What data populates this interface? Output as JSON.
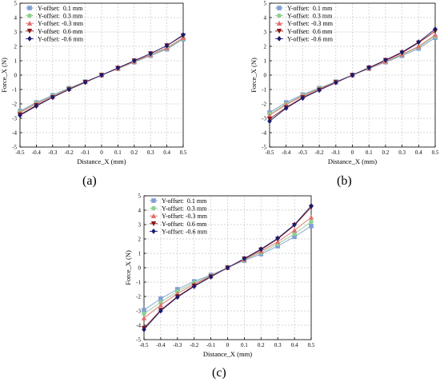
{
  "chart_data": [
    {
      "type": "line",
      "panel_label": "(a)",
      "xlabel": "Distance_X (mm)",
      "ylabel": "Force_X (N)",
      "xlim": [
        -0.5,
        0.5
      ],
      "ylim": [
        -5,
        5
      ],
      "xticks": [
        -0.5,
        -0.4,
        -0.3,
        -0.2,
        -0.1,
        0,
        0.1,
        0.2,
        0.3,
        0.4,
        0.5
      ],
      "yticks": [
        -5,
        -4,
        -3,
        -2,
        -1,
        0,
        1,
        2,
        3,
        4,
        5
      ],
      "grid": true,
      "legend_position": "top-left",
      "x": [
        -0.5,
        -0.4,
        -0.3,
        -0.2,
        -0.1,
        0,
        0.1,
        0.2,
        0.3,
        0.4,
        0.5
      ],
      "series": [
        {
          "name": "Y-offset:  0.1 mm",
          "color": "#7f9fd4",
          "marker": "square",
          "values": [
            -2.5,
            -1.9,
            -1.4,
            -0.9,
            -0.45,
            0,
            0.45,
            0.9,
            1.35,
            1.8,
            2.5
          ]
        },
        {
          "name": "Y-offset:  0.3 mm",
          "color": "#8fd08f",
          "marker": "circle",
          "values": [
            -2.55,
            -1.95,
            -1.45,
            -0.92,
            -0.46,
            0,
            0.46,
            0.92,
            1.38,
            1.85,
            2.55
          ]
        },
        {
          "name": "Y-offset: -0.3 mm",
          "color": "#e07070",
          "marker": "triangle-up",
          "values": [
            -2.6,
            -2.0,
            -1.5,
            -0.95,
            -0.47,
            0,
            0.47,
            0.95,
            1.42,
            1.9,
            2.6
          ]
        },
        {
          "name": "Y-offset:  0.6 mm",
          "color": "#8b1a1a",
          "marker": "triangle-down",
          "values": [
            -2.75,
            -2.1,
            -1.55,
            -1.0,
            -0.49,
            0,
            0.49,
            1.0,
            1.5,
            2.05,
            2.75
          ]
        },
        {
          "name": "Y-offset: -0.6 mm",
          "color": "#1a1a6e",
          "marker": "diamond",
          "values": [
            -2.8,
            -2.15,
            -1.55,
            -1.0,
            -0.5,
            0,
            0.5,
            1.0,
            1.5,
            2.05,
            2.8
          ]
        }
      ]
    },
    {
      "type": "line",
      "panel_label": "(b)",
      "xlabel": "Distance_X (mm)",
      "ylabel": "Force_X (N)",
      "xlim": [
        -0.5,
        0.5
      ],
      "ylim": [
        -5,
        5
      ],
      "xticks": [
        -0.5,
        -0.4,
        -0.3,
        -0.2,
        -0.1,
        0,
        0.1,
        0.2,
        0.3,
        0.4,
        0.5
      ],
      "yticks": [
        -5,
        -4,
        -3,
        -2,
        -1,
        0,
        1,
        2,
        3,
        4,
        5
      ],
      "grid": true,
      "legend_position": "top-left",
      "x": [
        -0.5,
        -0.4,
        -0.3,
        -0.2,
        -0.1,
        0,
        0.1,
        0.2,
        0.3,
        0.4,
        0.5
      ],
      "series": [
        {
          "name": "Y-offset:  0.1 mm",
          "color": "#7f9fd4",
          "marker": "square",
          "values": [
            -2.6,
            -1.9,
            -1.35,
            -0.9,
            -0.45,
            0,
            0.45,
            0.9,
            1.35,
            1.85,
            2.6
          ]
        },
        {
          "name": "Y-offset:  0.3 mm",
          "color": "#8fd08f",
          "marker": "circle",
          "values": [
            -2.7,
            -2.0,
            -1.4,
            -0.93,
            -0.47,
            0,
            0.47,
            0.93,
            1.42,
            1.95,
            2.7
          ]
        },
        {
          "name": "Y-offset: -0.3 mm",
          "color": "#e07070",
          "marker": "triangle-up",
          "values": [
            -2.8,
            -2.05,
            -1.45,
            -0.97,
            -0.48,
            0,
            0.48,
            0.97,
            1.45,
            2.0,
            2.8
          ]
        },
        {
          "name": "Y-offset:  0.6 mm",
          "color": "#8b1a1a",
          "marker": "triangle-down",
          "values": [
            -3.05,
            -2.25,
            -1.55,
            -1.03,
            -0.51,
            0,
            0.51,
            1.03,
            1.55,
            2.25,
            3.05
          ]
        },
        {
          "name": "Y-offset: -0.6 mm",
          "color": "#1a1a6e",
          "marker": "diamond",
          "values": [
            -3.2,
            -2.3,
            -1.6,
            -1.05,
            -0.52,
            0,
            0.52,
            1.05,
            1.6,
            2.3,
            3.2
          ]
        }
      ]
    },
    {
      "type": "line",
      "panel_label": "(c)",
      "xlabel": "Distance_X (mm)",
      "ylabel": "Force_X (N)",
      "xlim": [
        -0.5,
        0.5
      ],
      "ylim": [
        -5,
        5
      ],
      "xticks": [
        -0.5,
        -0.4,
        -0.3,
        -0.2,
        -0.1,
        0,
        0.1,
        0.2,
        0.3,
        0.4,
        0.5
      ],
      "yticks": [
        -5,
        -4,
        -3,
        -2,
        -1,
        0,
        1,
        2,
        3,
        4,
        5
      ],
      "grid": true,
      "legend_position": "top-left",
      "x": [
        -0.5,
        -0.4,
        -0.3,
        -0.2,
        -0.1,
        0,
        0.1,
        0.2,
        0.3,
        0.4,
        0.5
      ],
      "series": [
        {
          "name": "Y-offset:  0.1 mm",
          "color": "#7f9fd4",
          "marker": "square",
          "values": [
            -2.95,
            -2.15,
            -1.5,
            -0.95,
            -0.5,
            0,
            0.5,
            0.95,
            1.5,
            2.15,
            2.9
          ]
        },
        {
          "name": "Y-offset:  0.3 mm",
          "color": "#8fd08f",
          "marker": "circle",
          "values": [
            -3.2,
            -2.4,
            -1.65,
            -1.05,
            -0.55,
            0,
            0.55,
            1.05,
            1.65,
            2.35,
            3.2
          ]
        },
        {
          "name": "Y-offset: -0.3 mm",
          "color": "#e07070",
          "marker": "triangle-up",
          "values": [
            -3.5,
            -2.6,
            -1.8,
            -1.15,
            -0.58,
            0,
            0.58,
            1.15,
            1.8,
            2.6,
            3.5
          ]
        },
        {
          "name": "Y-offset:  0.6 mm",
          "color": "#8b1a1a",
          "marker": "triangle-down",
          "values": [
            -4.2,
            -2.95,
            -2.0,
            -1.25,
            -0.62,
            0,
            0.62,
            1.25,
            2.0,
            2.95,
            4.2
          ]
        },
        {
          "name": "Y-offset: -0.6 mm",
          "color": "#1a1a6e",
          "marker": "diamond",
          "values": [
            -4.3,
            -3.0,
            -2.05,
            -1.3,
            -0.64,
            0,
            0.64,
            1.3,
            2.05,
            3.0,
            4.3
          ]
        }
      ]
    }
  ]
}
